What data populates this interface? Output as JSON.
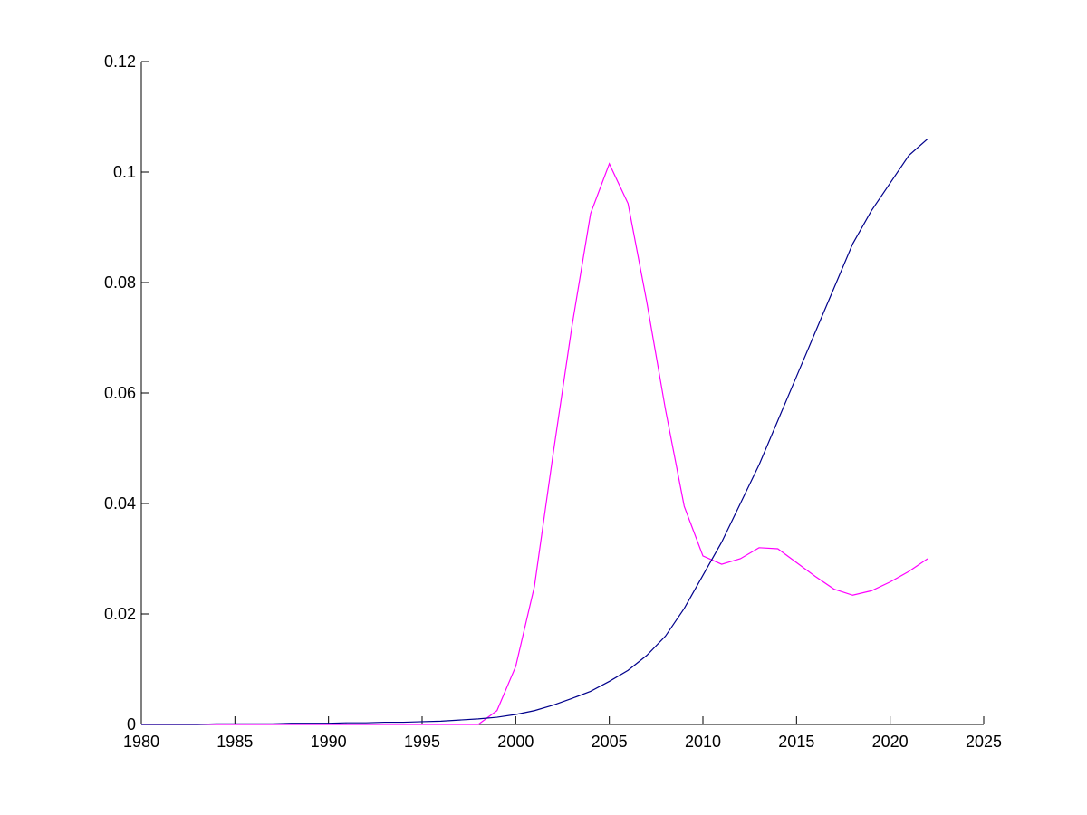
{
  "chart_data": {
    "type": "line",
    "x": [
      1980,
      1981,
      1982,
      1983,
      1984,
      1985,
      1986,
      1987,
      1988,
      1989,
      1990,
      1991,
      1992,
      1993,
      1994,
      1995,
      1996,
      1997,
      1998,
      1999,
      2000,
      2001,
      2002,
      2003,
      2004,
      2005,
      2006,
      2007,
      2008,
      2009,
      2010,
      2011,
      2012,
      2013,
      2014,
      2015,
      2016,
      2017,
      2018,
      2019,
      2020,
      2021,
      2022
    ],
    "series": [
      {
        "color": "#ff00ff",
        "values": [
          0,
          0,
          0,
          0,
          0,
          0,
          0,
          0,
          0,
          0,
          0,
          0,
          0,
          0,
          0,
          0,
          0,
          0,
          0,
          0.0025,
          0.0105,
          0.025,
          0.049,
          0.072,
          0.0925,
          0.1015,
          0.0943,
          0.0765,
          0.057,
          0.0395,
          0.0305,
          0.029,
          0.03,
          0.032,
          0.0318,
          0.0293,
          0.0268,
          0.0245,
          0.0234,
          0.0242,
          0.0258,
          0.0277,
          0.03
        ]
      },
      {
        "color": "#00008b",
        "values": [
          0,
          0,
          0,
          0,
          0.0001,
          0.0001,
          0.0001,
          0.0001,
          0.0002,
          0.0002,
          0.0002,
          0.0003,
          0.0003,
          0.0004,
          0.0004,
          0.0005,
          0.0006,
          0.0008,
          0.001,
          0.0013,
          0.0018,
          0.0025,
          0.0035,
          0.0047,
          0.006,
          0.0078,
          0.0098,
          0.0125,
          0.016,
          0.021,
          0.027,
          0.033,
          0.04,
          0.047,
          0.055,
          0.063,
          0.071,
          0.079,
          0.087,
          0.093,
          0.098,
          0.103,
          0.106
        ]
      }
    ],
    "xlim": [
      1980,
      2025
    ],
    "xticks": [
      1980,
      1985,
      1990,
      1995,
      2000,
      2005,
      2010,
      2015,
      2020,
      2025
    ],
    "ylim": [
      0,
      0.12
    ],
    "yticks": [
      0,
      0.02,
      0.04,
      0.06,
      0.08,
      0.1,
      0.12
    ],
    "grid": false
  }
}
